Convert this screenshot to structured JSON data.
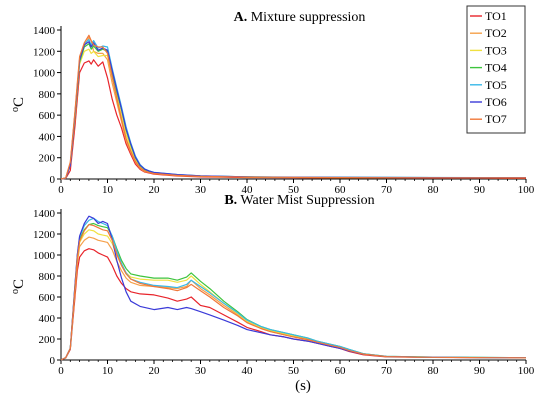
{
  "chart_data": [
    {
      "type": "line",
      "title_bold": "A.",
      "title": "Mixture suppression",
      "ylabel": "oC",
      "xlabel": "",
      "xlim": [
        0,
        100
      ],
      "ylim": [
        0,
        1400
      ],
      "xticks": [
        0,
        10,
        20,
        30,
        40,
        50,
        60,
        70,
        80,
        90,
        100
      ],
      "yticks": [
        0,
        200,
        400,
        600,
        800,
        1000,
        1200,
        1400
      ],
      "legend": "top-right",
      "series": [
        {
          "name": "TO1",
          "color": "#e8242b",
          "x": [
            0,
            1,
            2,
            3,
            3.5,
            4,
            5,
            6,
            6.5,
            7,
            8,
            9,
            10,
            11,
            12,
            13,
            14,
            15,
            16,
            17,
            18,
            19,
            20,
            25,
            30,
            40,
            50,
            60,
            70,
            80,
            90,
            100
          ],
          "y": [
            0,
            5,
            80,
            500,
            750,
            1000,
            1090,
            1110,
            1080,
            1120,
            1060,
            1100,
            950,
            750,
            600,
            480,
            330,
            230,
            140,
            90,
            65,
            55,
            45,
            28,
            20,
            14,
            12,
            10,
            9,
            8,
            8,
            7
          ]
        },
        {
          "name": "TO2",
          "color": "#f5a04a",
          "x": [
            0,
            1,
            2,
            3,
            3.5,
            4,
            5,
            6,
            6.5,
            7,
            8,
            9,
            10,
            11,
            12,
            13,
            14,
            15,
            16,
            17,
            18,
            19,
            20,
            25,
            30,
            40,
            50,
            60,
            70,
            80,
            90,
            100
          ],
          "y": [
            0,
            10,
            150,
            600,
            850,
            1100,
            1250,
            1330,
            1300,
            1200,
            1180,
            1180,
            1120,
            900,
            720,
            540,
            360,
            250,
            160,
            100,
            70,
            60,
            50,
            32,
            24,
            18,
            15,
            13,
            12,
            11,
            10,
            10
          ]
        },
        {
          "name": "TO3",
          "color": "#f0e040",
          "x": [
            0,
            1,
            2,
            3,
            3.5,
            4,
            5,
            6,
            6.5,
            7,
            8,
            9,
            10,
            11,
            12,
            13,
            14,
            15,
            16,
            17,
            18,
            19,
            20,
            25,
            30,
            40,
            50,
            60,
            70,
            80,
            90,
            100
          ],
          "y": [
            0,
            8,
            130,
            580,
            830,
            1080,
            1200,
            1220,
            1180,
            1200,
            1150,
            1160,
            1160,
            960,
            780,
            600,
            420,
            290,
            180,
            110,
            80,
            65,
            55,
            36,
            26,
            19,
            16,
            14,
            13,
            12,
            11,
            11
          ]
        },
        {
          "name": "TO4",
          "color": "#3ec43e",
          "x": [
            0,
            1,
            2,
            3,
            3.5,
            4,
            5,
            6,
            6.5,
            7,
            8,
            9,
            10,
            11,
            12,
            13,
            14,
            15,
            16,
            17,
            18,
            19,
            20,
            25,
            30,
            40,
            50,
            60,
            70,
            80,
            90,
            100
          ],
          "y": [
            0,
            8,
            130,
            600,
            850,
            1100,
            1240,
            1270,
            1220,
            1250,
            1200,
            1220,
            1200,
            1000,
            820,
            650,
            460,
            320,
            200,
            125,
            90,
            72,
            60,
            40,
            28,
            20,
            17,
            15,
            14,
            13,
            12,
            12
          ]
        },
        {
          "name": "TO5",
          "color": "#38b8e8",
          "x": [
            0,
            1,
            2,
            3,
            3.5,
            4,
            5,
            6,
            6.5,
            7,
            8,
            9,
            10,
            11,
            12,
            13,
            14,
            15,
            16,
            17,
            18,
            19,
            20,
            25,
            30,
            40,
            50,
            60,
            70,
            80,
            90,
            100
          ],
          "y": [
            0,
            8,
            130,
            620,
            870,
            1120,
            1270,
            1310,
            1260,
            1300,
            1230,
            1250,
            1240,
            1040,
            860,
            680,
            490,
            340,
            215,
            135,
            95,
            76,
            63,
            42,
            30,
            21,
            18,
            16,
            15,
            14,
            13,
            13
          ]
        },
        {
          "name": "TO6",
          "color": "#3a3ad8",
          "x": [
            0,
            1,
            2,
            3,
            3.5,
            4,
            5,
            6,
            6.5,
            7,
            8,
            9,
            10,
            11,
            12,
            13,
            14,
            15,
            16,
            17,
            18,
            19,
            20,
            25,
            30,
            40,
            50,
            60,
            70,
            80,
            90,
            100
          ],
          "y": [
            0,
            8,
            130,
            620,
            870,
            1120,
            1260,
            1290,
            1240,
            1280,
            1210,
            1230,
            1210,
            1020,
            840,
            660,
            470,
            330,
            205,
            130,
            92,
            74,
            61,
            41,
            29,
            20,
            17,
            15,
            14,
            13,
            12,
            12
          ]
        },
        {
          "name": "TO7",
          "color": "#f0783a",
          "x": [
            0,
            1,
            2,
            3,
            3.5,
            4,
            5,
            6,
            6.5,
            7,
            8,
            9,
            10,
            11,
            12,
            13,
            14,
            15,
            16,
            17,
            18,
            19,
            20,
            25,
            30,
            40,
            50,
            60,
            70,
            80,
            90,
            100
          ],
          "y": [
            0,
            10,
            160,
            640,
            900,
            1150,
            1280,
            1350,
            1300,
            1260,
            1240,
            1240,
            1180,
            960,
            760,
            560,
            380,
            260,
            165,
            105,
            75,
            62,
            52,
            34,
            25,
            18,
            15,
            13,
            12,
            11,
            11,
            10
          ]
        }
      ]
    },
    {
      "type": "line",
      "title_bold": "B.",
      "title": "Water Mist Suppression",
      "ylabel": "oC",
      "xlabel": "(s)",
      "xlim": [
        0,
        100
      ],
      "ylim": [
        0,
        1400
      ],
      "xticks": [
        0,
        10,
        20,
        30,
        40,
        50,
        60,
        70,
        80,
        90,
        100
      ],
      "yticks": [
        0,
        200,
        400,
        600,
        800,
        1000,
        1200,
        1400
      ],
      "series": [
        {
          "name": "TO1",
          "color": "#e8242b",
          "x": [
            0,
            1,
            2,
            3,
            3.5,
            4,
            5,
            6,
            7,
            8,
            9,
            10,
            11,
            12,
            13,
            14,
            15,
            17,
            20,
            23,
            25,
            27,
            28,
            30,
            32,
            35,
            38,
            40,
            43,
            45,
            48,
            50,
            53,
            55,
            58,
            60,
            62,
            65,
            70,
            80,
            100
          ],
          "y": [
            0,
            20,
            100,
            600,
            850,
            980,
            1040,
            1060,
            1050,
            1020,
            1000,
            980,
            900,
            800,
            730,
            680,
            650,
            630,
            620,
            590,
            560,
            580,
            600,
            520,
            500,
            430,
            360,
            310,
            270,
            240,
            220,
            200,
            180,
            160,
            130,
            110,
            80,
            50,
            30,
            25,
            20
          ]
        },
        {
          "name": "TO2",
          "color": "#f5a04a",
          "x": [
            0,
            1,
            2,
            3,
            3.5,
            4,
            5,
            6,
            7,
            8,
            9,
            10,
            11,
            12,
            13,
            14,
            15,
            17,
            20,
            23,
            25,
            27,
            28,
            30,
            32,
            35,
            38,
            40,
            43,
            45,
            48,
            50,
            53,
            55,
            58,
            60,
            62,
            65,
            70,
            80,
            100
          ],
          "y": [
            0,
            22,
            110,
            650,
            920,
            1080,
            1140,
            1170,
            1160,
            1140,
            1130,
            1120,
            1050,
            940,
            850,
            780,
            740,
            710,
            700,
            690,
            680,
            700,
            760,
            680,
            620,
            520,
            430,
            360,
            300,
            270,
            240,
            220,
            190,
            170,
            140,
            120,
            90,
            55,
            32,
            26,
            20
          ]
        },
        {
          "name": "TO3",
          "color": "#f0e040",
          "x": [
            0,
            1,
            2,
            3,
            3.5,
            4,
            5,
            6,
            7,
            8,
            9,
            10,
            11,
            12,
            13,
            14,
            15,
            17,
            20,
            23,
            25,
            27,
            28,
            30,
            32,
            35,
            38,
            40,
            43,
            45,
            48,
            50,
            53,
            55,
            58,
            60,
            62,
            65,
            70,
            80,
            100
          ],
          "y": [
            0,
            22,
            110,
            680,
            960,
            1120,
            1200,
            1240,
            1230,
            1200,
            1190,
            1180,
            1110,
            1000,
            900,
            830,
            790,
            770,
            760,
            760,
            740,
            760,
            800,
            720,
            650,
            540,
            440,
            370,
            310,
            280,
            250,
            230,
            200,
            175,
            145,
            125,
            95,
            58,
            33,
            27,
            21
          ]
        },
        {
          "name": "TO4",
          "color": "#3ec43e",
          "x": [
            0,
            1,
            2,
            3,
            3.5,
            4,
            5,
            6,
            7,
            8,
            9,
            10,
            11,
            12,
            13,
            14,
            15,
            17,
            20,
            23,
            25,
            27,
            28,
            30,
            32,
            35,
            38,
            40,
            43,
            45,
            48,
            50,
            53,
            55,
            58,
            60,
            62,
            65,
            70,
            80,
            100
          ],
          "y": [
            0,
            22,
            110,
            700,
            980,
            1150,
            1240,
            1290,
            1300,
            1280,
            1270,
            1260,
            1180,
            1060,
            950,
            870,
            820,
            800,
            780,
            780,
            760,
            790,
            830,
            750,
            680,
            560,
            460,
            385,
            320,
            290,
            260,
            240,
            210,
            180,
            150,
            130,
            100,
            60,
            34,
            28,
            22
          ]
        },
        {
          "name": "TO5",
          "color": "#38b8e8",
          "x": [
            0,
            1,
            2,
            3,
            3.5,
            4,
            5,
            6,
            7,
            8,
            9,
            10,
            11,
            12,
            13,
            14,
            15,
            17,
            20,
            23,
            25,
            27,
            28,
            30,
            32,
            35,
            38,
            40,
            43,
            45,
            48,
            50,
            53,
            55,
            58,
            60,
            62,
            65,
            70,
            80,
            100
          ],
          "y": [
            0,
            22,
            110,
            720,
            1000,
            1170,
            1280,
            1330,
            1350,
            1320,
            1300,
            1280,
            1180,
            1040,
            920,
            830,
            770,
            740,
            710,
            700,
            690,
            720,
            760,
            700,
            640,
            540,
            450,
            380,
            320,
            290,
            260,
            240,
            210,
            180,
            150,
            130,
            100,
            60,
            34,
            28,
            22
          ]
        },
        {
          "name": "TO6",
          "color": "#3a3ad8",
          "x": [
            0,
            1,
            2,
            3,
            3.5,
            4,
            5,
            6,
            7,
            8,
            9,
            10,
            11,
            12,
            13,
            14,
            15,
            17,
            20,
            23,
            25,
            27,
            28,
            30,
            32,
            35,
            38,
            40,
            43,
            45,
            48,
            50,
            53,
            55,
            58,
            60,
            62,
            65,
            70,
            80,
            100
          ],
          "y": [
            0,
            22,
            110,
            720,
            1000,
            1180,
            1300,
            1370,
            1350,
            1300,
            1320,
            1300,
            1150,
            950,
            780,
            650,
            560,
            510,
            480,
            500,
            480,
            500,
            490,
            460,
            430,
            380,
            330,
            290,
            260,
            240,
            220,
            200,
            180,
            160,
            130,
            110,
            85,
            55,
            32,
            26,
            20
          ]
        },
        {
          "name": "TO7",
          "color": "#f0783a",
          "x": [
            0,
            1,
            2,
            3,
            3.5,
            4,
            5,
            6,
            7,
            8,
            9,
            10,
            11,
            12,
            13,
            14,
            15,
            17,
            20,
            23,
            25,
            27,
            28,
            30,
            32,
            35,
            38,
            40,
            43,
            45,
            48,
            50,
            53,
            55,
            58,
            60,
            62,
            65,
            70,
            80,
            100
          ],
          "y": [
            0,
            22,
            110,
            690,
            970,
            1130,
            1230,
            1290,
            1280,
            1260,
            1240,
            1230,
            1140,
            1010,
            900,
            820,
            770,
            730,
            700,
            680,
            660,
            690,
            720,
            660,
            600,
            500,
            420,
            355,
            300,
            270,
            240,
            220,
            195,
            170,
            140,
            120,
            90,
            56,
            32,
            26,
            20
          ]
        }
      ]
    }
  ]
}
